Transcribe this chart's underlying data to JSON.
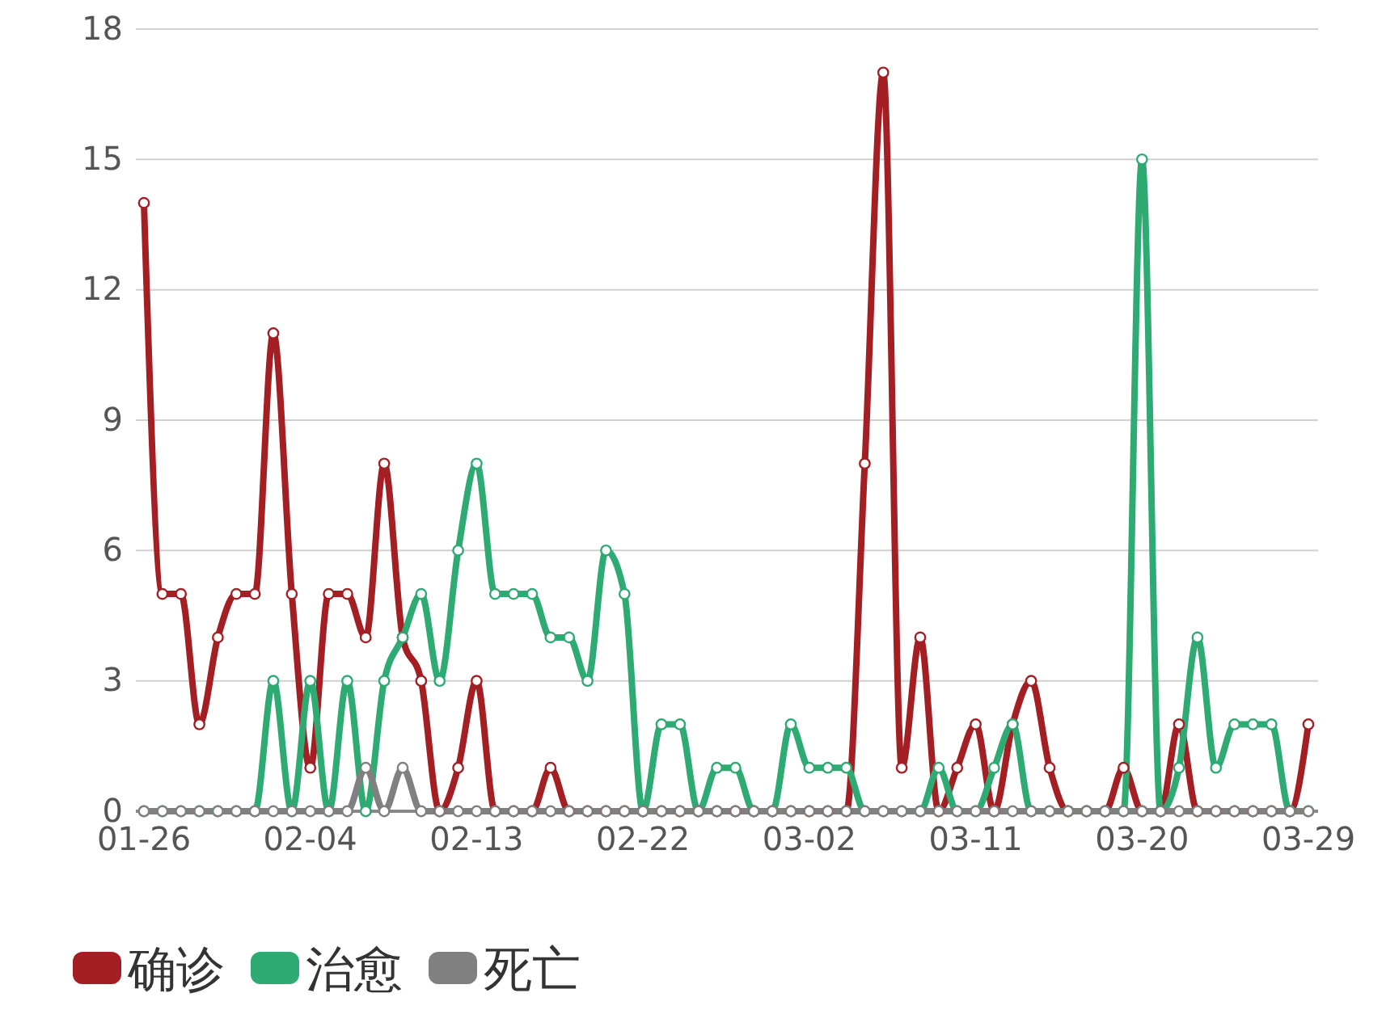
{
  "chart_data": {
    "type": "line",
    "categories": [
      "01-26",
      null,
      null,
      null,
      null,
      null,
      null,
      null,
      null,
      "02-04",
      null,
      null,
      null,
      null,
      null,
      null,
      null,
      null,
      "02-13",
      null,
      null,
      null,
      null,
      null,
      null,
      null,
      null,
      "02-22",
      null,
      null,
      null,
      null,
      null,
      null,
      null,
      null,
      "03-02",
      null,
      null,
      null,
      null,
      null,
      null,
      null,
      null,
      "03-11",
      null,
      null,
      null,
      null,
      null,
      null,
      null,
      null,
      "03-20",
      null,
      null,
      null,
      null,
      null,
      null,
      null,
      null,
      "03-29"
    ],
    "series": [
      {
        "name": "确诊",
        "color": "#a31f24",
        "values": [
          14,
          5,
          5,
          2,
          4,
          5,
          5,
          11,
          5,
          1,
          5,
          5,
          4,
          8,
          4,
          3,
          0,
          1,
          3,
          0,
          0,
          0,
          1,
          0,
          0,
          0,
          0,
          0,
          0,
          0,
          0,
          0,
          0,
          0,
          0,
          0,
          0,
          0,
          0,
          8,
          17,
          1,
          4,
          0,
          1,
          2,
          0,
          2,
          3,
          1,
          0,
          0,
          0,
          1,
          0,
          0,
          2,
          0,
          0,
          0,
          0,
          0,
          0,
          2
        ]
      },
      {
        "name": "治愈",
        "color": "#2eaa73",
        "values": [
          0,
          0,
          0,
          0,
          0,
          0,
          0,
          3,
          0,
          3,
          0,
          3,
          0,
          3,
          4,
          5,
          3,
          6,
          8,
          5,
          5,
          5,
          4,
          4,
          3,
          6,
          5,
          0,
          2,
          2,
          0,
          1,
          1,
          0,
          0,
          2,
          1,
          1,
          1,
          0,
          0,
          0,
          0,
          1,
          0,
          0,
          1,
          2,
          0,
          0,
          0,
          0,
          0,
          0,
          15,
          0,
          1,
          4,
          1,
          2,
          2,
          2,
          0,
          0
        ]
      },
      {
        "name": "死亡",
        "color": "#808080",
        "values": [
          0,
          0,
          0,
          0,
          0,
          0,
          0,
          0,
          0,
          0,
          0,
          0,
          1,
          0,
          1,
          0,
          0,
          0,
          0,
          0,
          0,
          0,
          0,
          0,
          0,
          0,
          0,
          0,
          0,
          0,
          0,
          0,
          0,
          0,
          0,
          0,
          0,
          0,
          0,
          0,
          0,
          0,
          0,
          0,
          0,
          0,
          0,
          0,
          0,
          0,
          0,
          0,
          0,
          0,
          0,
          0,
          0,
          0,
          0,
          0,
          0,
          0,
          0,
          0
        ]
      }
    ],
    "ylim": [
      0,
      18
    ],
    "yticks": [
      0,
      3,
      6,
      9,
      12,
      15,
      18
    ],
    "grid": "y",
    "legend": "bottom left",
    "marker": "circle",
    "line_style": "solid"
  }
}
